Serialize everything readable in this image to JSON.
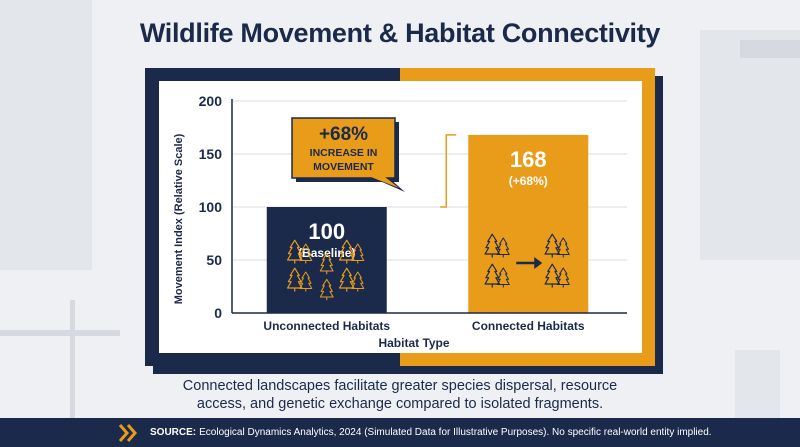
{
  "page": {
    "title": "Wildlife Movement & Habitat Connectivity",
    "caption_line1": "Connected landscapes facilitate greater species dispersal, resource",
    "caption_line2": "access, and genetic exchange compared to isolated fragments.",
    "source_label": "SOURCE:",
    "source_text": "Ecological Dynamics Analytics, 2024 (Simulated Data for Illustrative Purposes). No specific real-world entity implied."
  },
  "colors": {
    "navy": "#1b2a4a",
    "orange": "#e89c1a",
    "grid": "#d9dce1",
    "white": "#ffffff"
  },
  "chart_data": {
    "type": "bar",
    "title": "",
    "xlabel": "Habitat Type",
    "ylabel": "Movement Index (Relative Scale)",
    "ylim": [
      0,
      200
    ],
    "yticks": [
      0,
      50,
      100,
      150,
      200
    ],
    "grid": true,
    "categories": [
      "Unconnected Habitats",
      "Connected Habitats"
    ],
    "values": [
      100,
      168
    ],
    "bar_colors": [
      "#1b2a4a",
      "#e89c1a"
    ],
    "bar_value_labels": [
      "100",
      "168"
    ],
    "bar_sub_labels": [
      "(Baseline)",
      "(+68%)"
    ],
    "bar_icons": [
      "tree-cluster-icon",
      "connected-trees-icon"
    ],
    "callout": {
      "line1": "+68%",
      "line2": "INCREASE IN",
      "line3": "MOVEMENT"
    }
  }
}
